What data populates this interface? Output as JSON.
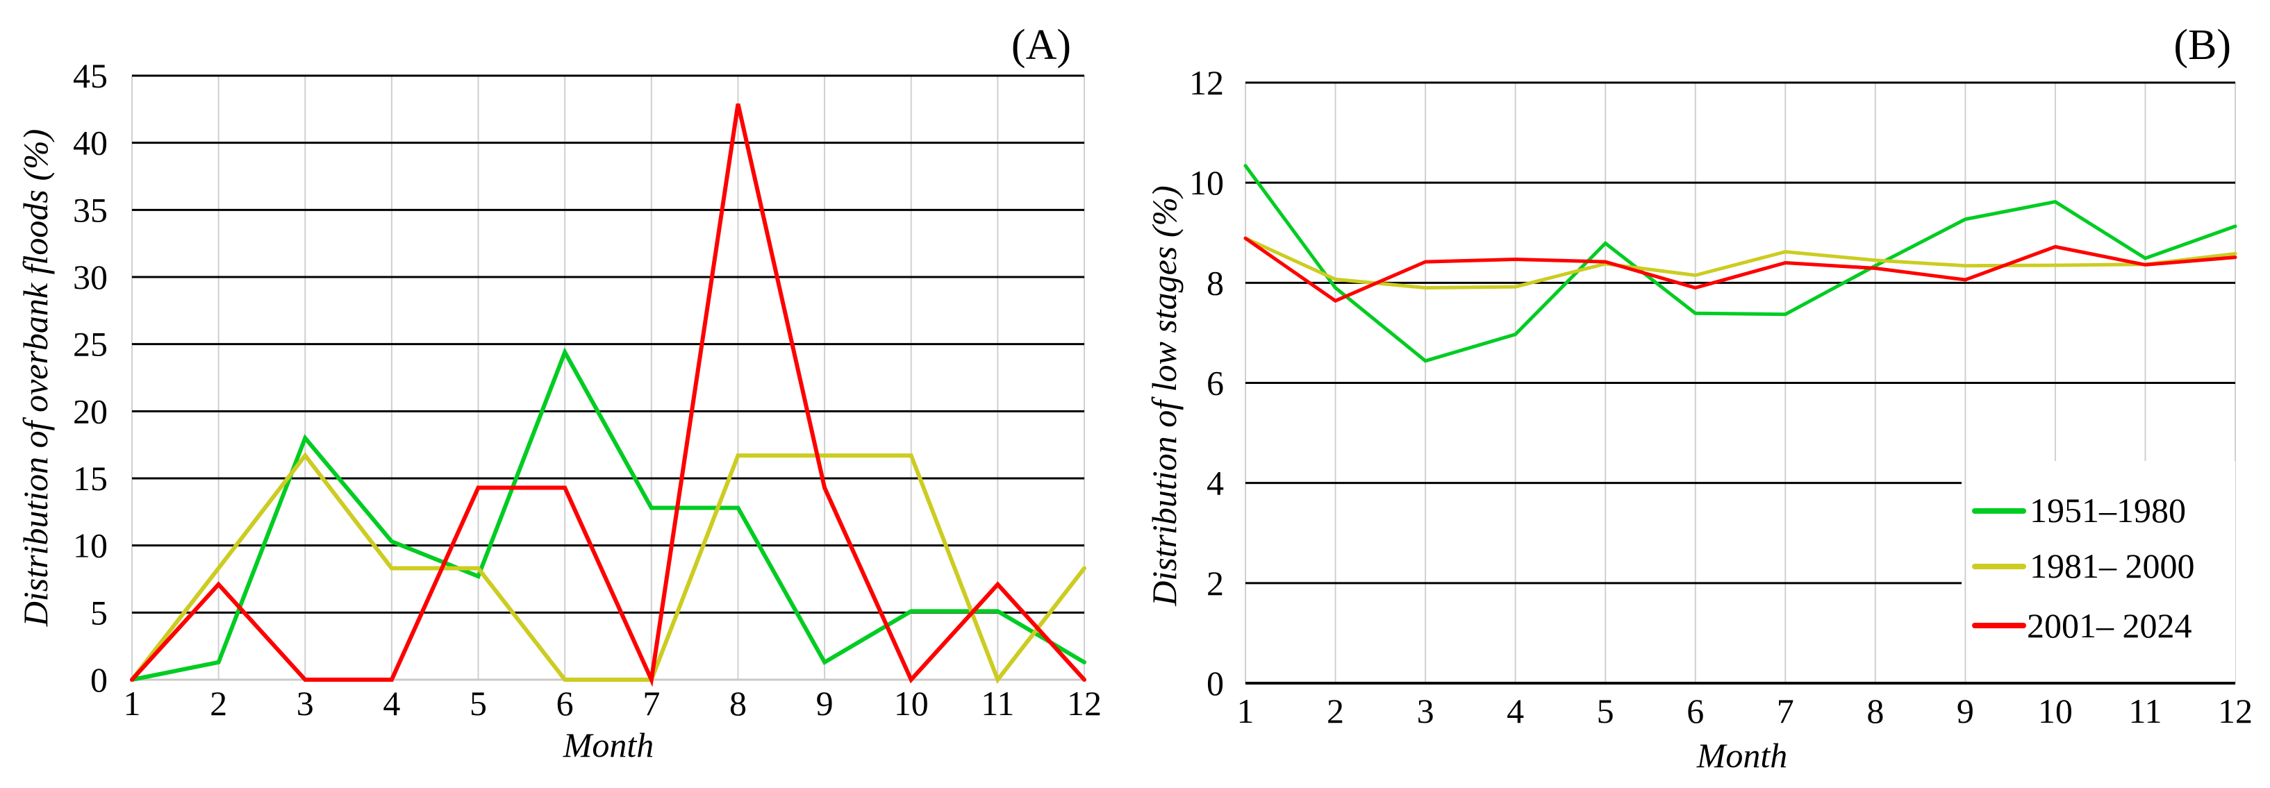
{
  "figure": {
    "panels": [
      "A",
      "B"
    ]
  },
  "colors": {
    "series_1951_1980": "#00cc22",
    "series_1981_2000": "#cccc22",
    "series_2001_2024": "#ff0000",
    "major_grid": "#000000",
    "minor_grid": "#d0d0d0"
  },
  "chart_data": [
    {
      "panel_label": "(A)",
      "type": "line",
      "title": "",
      "xlabel": "Month",
      "ylabel": "Distribution of overbank floods (%)",
      "x": [
        1,
        2,
        3,
        4,
        5,
        6,
        7,
        8,
        9,
        10,
        11,
        12
      ],
      "x_tick_labels": [
        "1",
        "2",
        "3",
        "4",
        "5",
        "6",
        "7",
        "8",
        "9",
        "10",
        "11",
        "12"
      ],
      "ylim": [
        0,
        45
      ],
      "y_ticks": [
        0,
        5,
        10,
        15,
        20,
        25,
        30,
        35,
        40,
        45
      ],
      "grid": true,
      "legend": false,
      "series": [
        {
          "name": "1951–1980",
          "color": "#00cc22",
          "values": [
            0,
            1.3,
            18.0,
            10.3,
            7.7,
            24.4,
            12.8,
            12.8,
            1.3,
            5.1,
            5.1,
            1.3
          ]
        },
        {
          "name": "1981– 2000",
          "color": "#cccc22",
          "values": [
            0,
            8.3,
            16.7,
            8.3,
            8.3,
            0,
            0,
            16.7,
            16.7,
            16.7,
            0,
            8.3
          ]
        },
        {
          "name": "2001– 2024",
          "color": "#ff0000",
          "values": [
            0,
            7.1,
            0,
            0,
            14.3,
            14.3,
            0,
            42.9,
            14.3,
            0,
            7.1,
            0
          ]
        }
      ]
    },
    {
      "panel_label": "(B)",
      "type": "line",
      "title": "",
      "xlabel": "Month",
      "ylabel": "Distribution of low stages (%)",
      "x": [
        1,
        2,
        3,
        4,
        5,
        6,
        7,
        8,
        9,
        10,
        11,
        12
      ],
      "x_tick_labels": [
        "1",
        "2",
        "3",
        "4",
        "5",
        "6",
        "7",
        "8",
        "9",
        "10",
        "11",
        "12"
      ],
      "ylim": [
        0,
        12
      ],
      "y_ticks": [
        0,
        2,
        4,
        6,
        8,
        10,
        12
      ],
      "grid": true,
      "legend": true,
      "legend_position": "lower right",
      "legend_entries": [
        "1951–1980",
        "1981– 2000",
        "2001– 2024"
      ],
      "series": [
        {
          "name": "1951–1980",
          "color": "#00cc22",
          "values": [
            10.34,
            7.9,
            6.44,
            6.97,
            8.79,
            7.39,
            7.37,
            8.34,
            9.27,
            9.62,
            8.49,
            9.13
          ]
        },
        {
          "name": "1981– 2000",
          "color": "#cccc22",
          "values": [
            8.89,
            8.07,
            7.9,
            7.92,
            8.38,
            8.15,
            8.62,
            8.45,
            8.34,
            8.35,
            8.37,
            8.58
          ]
        },
        {
          "name": "2001– 2024",
          "color": "#ff0000",
          "values": [
            8.89,
            7.64,
            8.42,
            8.47,
            8.42,
            7.9,
            8.4,
            8.29,
            8.06,
            8.72,
            8.36,
            8.51
          ]
        }
      ]
    }
  ]
}
